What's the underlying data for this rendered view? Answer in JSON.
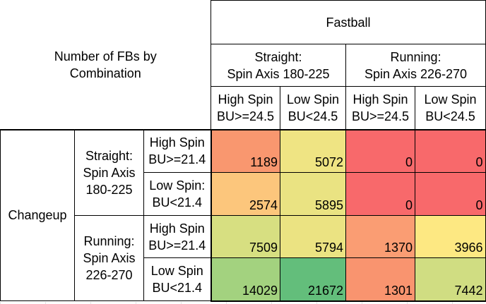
{
  "header": {
    "corner_label": "Number of FBs by Combination",
    "corner_line1": "Number of FBs by",
    "corner_line2": "Combination",
    "fastball": "Fastball",
    "changeup": "Changeup"
  },
  "fb_groups": [
    {
      "line1": "Straight:",
      "line2": "Spin Axis 180-225"
    },
    {
      "line1": "Running:",
      "line2": "Spin Axis 226-270"
    }
  ],
  "fb_subgroups": [
    {
      "line1": "High Spin",
      "line2": "BU>=24.5"
    },
    {
      "line1": "Low Spin",
      "line2": "BU<24.5"
    },
    {
      "line1": "High Spin",
      "line2": "BU>=24.5"
    },
    {
      "line1": "Low Spin",
      "line2": "BU<24.5"
    }
  ],
  "ch_groups": [
    {
      "line1": "Straight:",
      "line2": "Spin Axis",
      "line3": "180-225"
    },
    {
      "line1": "Running:",
      "line2": "Spin Axis",
      "line3": "226-270"
    }
  ],
  "ch_subgroups": [
    {
      "line1": "High Spin",
      "line2": "BU>=21.4"
    },
    {
      "line1": "Low Spin:",
      "line2": "BU<21.4"
    },
    {
      "line1": "High Spin",
      "line2": "BU>=21.4"
    },
    {
      "line1": "Low Spin",
      "line2": "BU<21.4"
    }
  ],
  "values": [
    [
      "1189",
      "5072",
      "0",
      "0"
    ],
    [
      "2574",
      "5895",
      "0",
      "0"
    ],
    [
      "7509",
      "5794",
      "1370",
      "3966"
    ],
    [
      "14029",
      "21672",
      "1301",
      "7442"
    ]
  ],
  "colors": [
    [
      "#f9976f",
      "#efe483",
      "#f8696b",
      "#f8696b"
    ],
    [
      "#fcc67c",
      "#eae382",
      "#f8696b",
      "#f8696b"
    ],
    [
      "#d7df81",
      "#ebe382",
      "#fa9d73",
      "#fde882"
    ],
    [
      "#a3d27f",
      "#63be7b",
      "#f9946f",
      "#d0dd82"
    ]
  ]
}
